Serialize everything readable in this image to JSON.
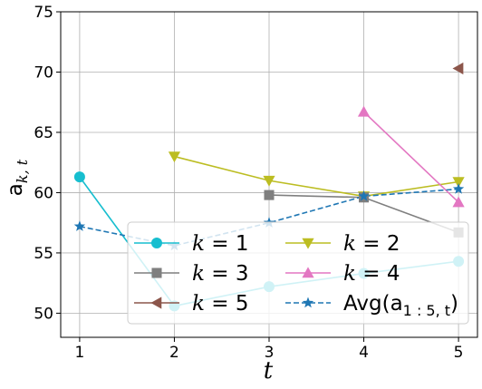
{
  "chart_data": {
    "type": "line",
    "xlabel": "t",
    "ylabel": "a",
    "ylabel_sub": "k, t",
    "xlim": [
      0.8,
      5.2
    ],
    "ylim": [
      48,
      75
    ],
    "xticks": [
      "1",
      "2",
      "3",
      "4",
      "5"
    ],
    "yticks": [
      "50",
      "55",
      "60",
      "65",
      "70",
      "75"
    ],
    "grid": true,
    "legend_position": "lower-center",
    "series": [
      {
        "name": "k = 1",
        "color": "#17becf",
        "marker": "circle",
        "dash": false,
        "x": [
          1,
          2,
          3,
          4,
          5
        ],
        "y": [
          61.3,
          50.6,
          52.2,
          53.3,
          54.3
        ]
      },
      {
        "name": "k = 2",
        "color": "#bcbd22",
        "marker": "triangle-down",
        "dash": false,
        "x": [
          2,
          3,
          4,
          5
        ],
        "y": [
          63.0,
          61.0,
          59.7,
          60.9
        ]
      },
      {
        "name": "k = 3",
        "color": "#7f7f7f",
        "marker": "square",
        "dash": false,
        "x": [
          3,
          4,
          5
        ],
        "y": [
          59.8,
          59.6,
          56.7
        ]
      },
      {
        "name": "k = 4",
        "color": "#e377c2",
        "marker": "triangle-up",
        "dash": false,
        "x": [
          4,
          5
        ],
        "y": [
          66.7,
          59.2
        ]
      },
      {
        "name": "k = 5",
        "color": "#8c564b",
        "marker": "triangle-left",
        "dash": false,
        "x": [
          5
        ],
        "y": [
          70.3
        ]
      },
      {
        "name": "Avg(a",
        "name_sub": "1 : 5, t",
        "name_suffix": ")",
        "color": "#1f77b4",
        "marker": "star",
        "dash": true,
        "x": [
          1,
          2,
          3,
          4,
          5
        ],
        "y": [
          57.2,
          55.6,
          57.5,
          59.7,
          60.3
        ]
      }
    ]
  }
}
